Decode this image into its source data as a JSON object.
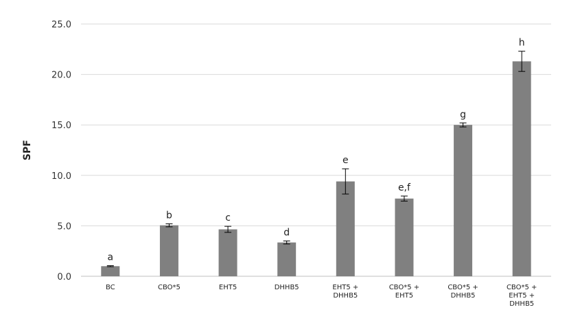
{
  "chart_data": {
    "type": "bar",
    "title": "",
    "xlabel": "",
    "ylabel": "SPF",
    "ylim": [
      0,
      25
    ],
    "yticks": [
      "0.0",
      "5.0",
      "10.0",
      "15.0",
      "20.0",
      "25.0"
    ],
    "grid": true,
    "legend": "none",
    "bar_color": "#808080",
    "categories": [
      [
        "BC"
      ],
      [
        "CBO*5"
      ],
      [
        "EHT5"
      ],
      [
        "DHHB5"
      ],
      [
        "EHT5 +",
        "DHHB5"
      ],
      [
        "CBO*5 +",
        "EHT5"
      ],
      [
        "CBO*5 +",
        "DHHB5"
      ],
      [
        "CBO*5 +",
        "EHT5 +",
        "DHHB5"
      ]
    ],
    "values": [
      1.0,
      5.05,
      4.65,
      3.35,
      9.4,
      7.7,
      15.0,
      21.3
    ],
    "errors": [
      0.05,
      0.15,
      0.3,
      0.15,
      1.25,
      0.25,
      0.2,
      1.0
    ],
    "annotations": [
      "a",
      "b",
      "c",
      "d",
      "e",
      "e,f",
      "g",
      "h"
    ]
  }
}
